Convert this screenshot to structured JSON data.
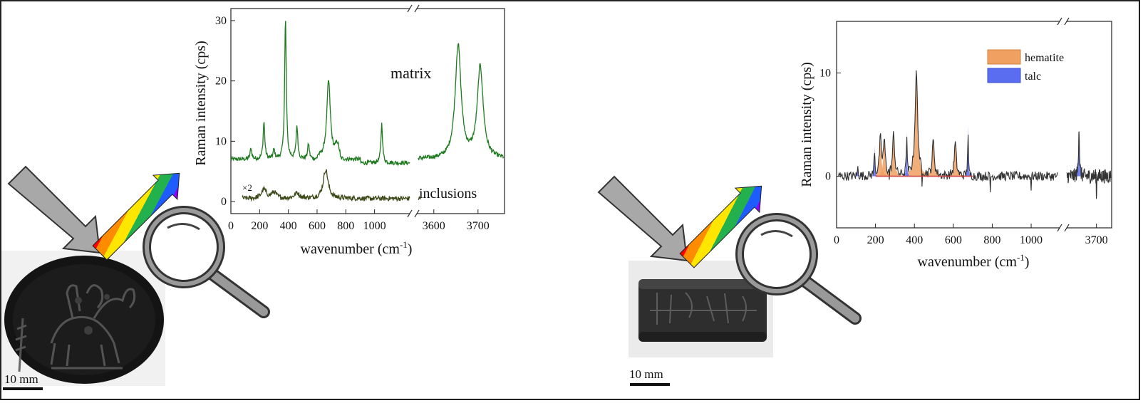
{
  "colors": {
    "matrix": "#1f7a1f",
    "inclusions": "#3d4a1a",
    "spectrum_right": "#333333",
    "hematite": "#f0a060",
    "talc": "#5a6cf0",
    "baseline": "#d04040",
    "arrow_gray": "#a8a8a8"
  },
  "left_photo": {
    "scale_label": "10 mm",
    "icon": "gem-photo"
  },
  "right_photo": {
    "scale_label": "10 mm",
    "icon": "cylinder-seal-photo"
  },
  "chart_data": [
    {
      "type": "line",
      "ylabel": "Raman intensity (cps)",
      "xlabel": "wavenumber (cm",
      "xlabel_sup": "-1",
      "xlabel_close": ")",
      "broken_x_axis": true,
      "segments": [
        {
          "xlim": [
            0,
            1250
          ],
          "ticks": [
            0,
            200,
            400,
            600,
            800,
            1000
          ]
        },
        {
          "xlim": [
            3560,
            3760
          ],
          "ticks": [
            3600,
            3700
          ]
        }
      ],
      "ylim": [
        -2,
        32
      ],
      "yticks": [
        0,
        10,
        20,
        30
      ],
      "series": [
        {
          "name": "matrix",
          "peaks_low": [
            [
              140,
              1.8
            ],
            [
              230,
              6.2
            ],
            [
              300,
              1.5
            ],
            [
              380,
              23.2
            ],
            [
              460,
              5.5
            ],
            [
              540,
              2.5
            ],
            [
              680,
              12.8
            ],
            [
              740,
              2.2
            ],
            [
              1050,
              6.5
            ]
          ],
          "baseline_low": 7.0,
          "peaks_high": [
            [
              3655,
              18.8
            ],
            [
              3705,
              15.2
            ]
          ],
          "baseline_high": 7.0
        },
        {
          "name": "inclusions",
          "annotation": "×2",
          "peaks_low": [
            [
              230,
              1.5
            ],
            [
              300,
              1.0
            ],
            [
              460,
              0.9
            ],
            [
              660,
              4.8
            ]
          ],
          "baseline_low": 0.5,
          "baseline_high": 0.5
        }
      ]
    },
    {
      "type": "line",
      "ylabel": "Raman intensity (cps)",
      "xlabel": "wavenumber (cm",
      "xlabel_sup": "-1",
      "xlabel_close": ")",
      "broken_x_axis": true,
      "segments": [
        {
          "xlim": [
            0,
            1150
          ],
          "ticks": [
            0,
            200,
            400,
            600,
            800,
            1000
          ]
        },
        {
          "xlim": [
            3660,
            3720
          ],
          "ticks": [
            3700
          ]
        }
      ],
      "ylim": [
        -5,
        15
      ],
      "yticks": [
        0,
        10
      ],
      "legend": [
        "hematite",
        "talc"
      ],
      "legend_position": "top-right",
      "hematite_bands": [
        [
          225,
          3.5
        ],
        [
          245,
          3.2
        ],
        [
          293,
          4.0
        ],
        [
          410,
          10.0
        ],
        [
          497,
          3.4
        ],
        [
          610,
          3.2
        ]
      ],
      "talc_bands": [
        [
          110,
          1.0
        ],
        [
          195,
          3.0
        ],
        [
          360,
          4.3
        ],
        [
          675,
          4.9
        ],
        [
          3677,
          5.0
        ]
      ],
      "negative_spikes": [
        [
          272,
          -0.7
        ],
        [
          440,
          -1.8
        ],
        [
          790,
          -1.6
        ],
        [
          1000,
          -1.2
        ],
        [
          3700,
          -2.0
        ]
      ]
    }
  ]
}
